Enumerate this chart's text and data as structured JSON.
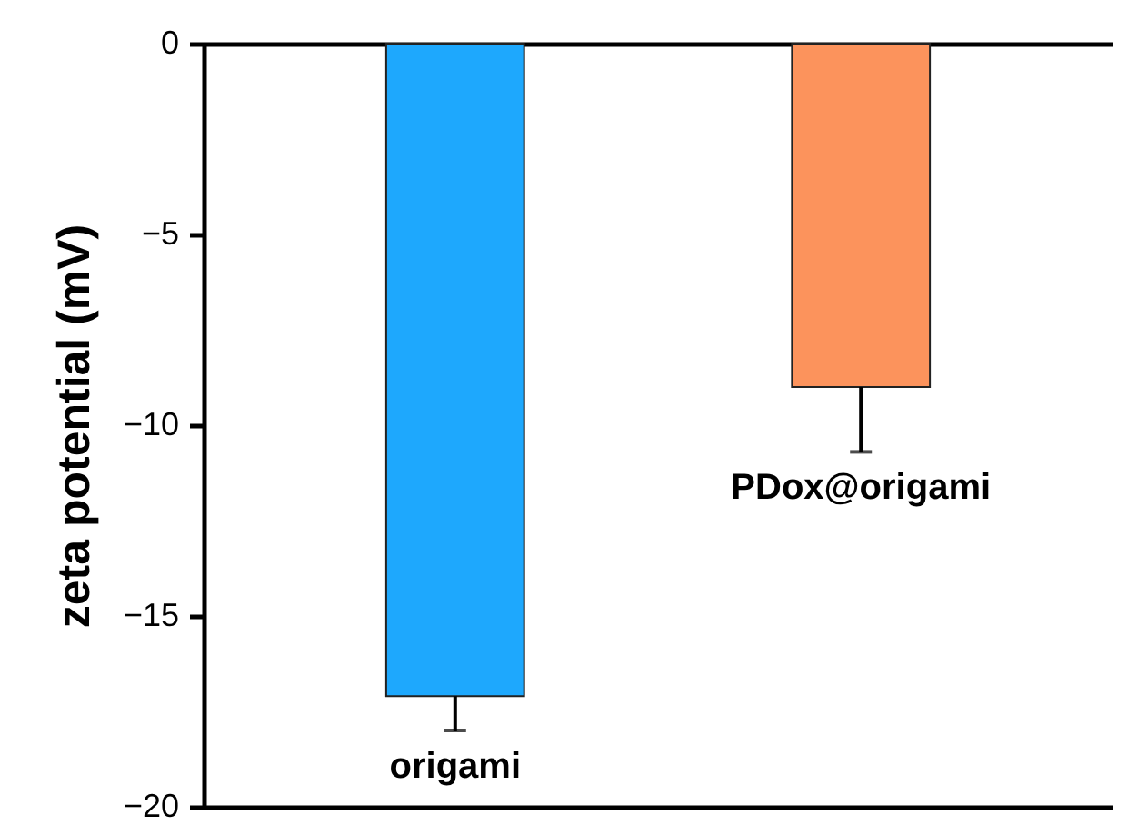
{
  "chart_data": {
    "type": "bar",
    "ylabel": "zeta potential (mV)",
    "categories": [
      "origami",
      "PDox@origami"
    ],
    "values": [
      -17.1,
      -9.0
    ],
    "colors": [
      "#1ea8fd",
      "#fc935c"
    ],
    "errors": [
      [
        -18.0,
        -17.1
      ],
      [
        -10.7,
        -9.0
      ]
    ],
    "ylim": [
      -20,
      0
    ],
    "yticks": [
      -20,
      -15,
      -10,
      -5,
      0
    ],
    "grid": false
  }
}
